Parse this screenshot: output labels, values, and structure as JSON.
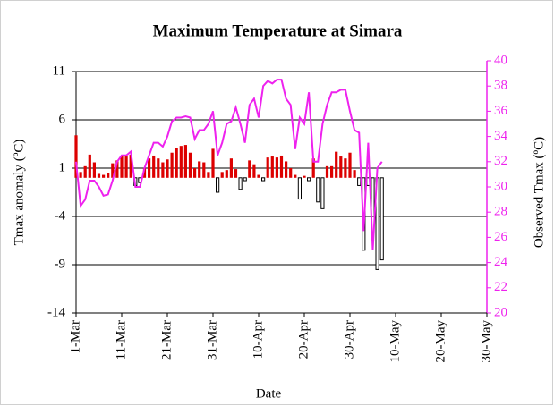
{
  "chart_data": {
    "type": "combo",
    "title": "Maximum Temperature at Simara",
    "xlabel": "Date",
    "ylabel": "Tmax anomaly (ºC)",
    "y2label": "Observed Tmax  (ºC)",
    "x": [
      0,
      1,
      2,
      3,
      4,
      5,
      6,
      7,
      8,
      9,
      10,
      11,
      12,
      13,
      14,
      15,
      16,
      17,
      18,
      19,
      20,
      21,
      22,
      23,
      24,
      25,
      26,
      27,
      28,
      29,
      30,
      31,
      32,
      33,
      34,
      35,
      36,
      37,
      38,
      39,
      40,
      41,
      42,
      43,
      44,
      45,
      46,
      47,
      48,
      49,
      50,
      51,
      52,
      53,
      54,
      55,
      56,
      57,
      58,
      59,
      60,
      61,
      62,
      63,
      64,
      65,
      66,
      67
    ],
    "xlim": [
      0,
      90
    ],
    "xticks": [
      {
        "value": 0,
        "label": "1-Mar"
      },
      {
        "value": 10,
        "label": "11-Mar"
      },
      {
        "value": 20,
        "label": "21-Mar"
      },
      {
        "value": 30,
        "label": "31-Mar"
      },
      {
        "value": 40,
        "label": "10-Apr"
      },
      {
        "value": 50,
        "label": "20-Apr"
      },
      {
        "value": 60,
        "label": "30-Apr"
      },
      {
        "value": 70,
        "label": "10-May"
      },
      {
        "value": 80,
        "label": "20-May"
      },
      {
        "value": 90,
        "label": "30-May"
      }
    ],
    "ylim": [
      -14,
      11
    ],
    "yticks": [
      -14,
      -9,
      -4,
      1,
      6,
      11
    ],
    "y2lim": [
      20,
      40
    ],
    "y2ticks": [
      20,
      22,
      24,
      26,
      28,
      30,
      32,
      34,
      36,
      38,
      40
    ],
    "grid": true,
    "series": [
      {
        "type": "bar",
        "color": "#dd0000",
        "negative_color": "#ffffff",
        "values": [
          4.4,
          0.6,
          1.2,
          2.4,
          1.6,
          0.4,
          0.3,
          0.5,
          1.5,
          1.8,
          2.2,
          2.2,
          2.4,
          -0.8,
          -0.5,
          1.0,
          2.0,
          2.3,
          2.0,
          1.6,
          1.9,
          2.6,
          3.1,
          3.3,
          3.4,
          2.6,
          1.0,
          1.7,
          1.6,
          0.6,
          3.0,
          -1.5,
          0.6,
          0.8,
          2.0,
          0.9,
          -1.2,
          -0.3,
          1.8,
          1.4,
          0.3,
          -0.3,
          2.1,
          2.2,
          2.1,
          2.3,
          1.7,
          1.0,
          0.3,
          -2.2,
          0.2,
          -0.3,
          2.0,
          -2.5,
          -3.2,
          1.2,
          1.2,
          2.7,
          2.2,
          2.0,
          2.6,
          0.8,
          -0.8,
          -7.5,
          -0.8,
          -4.0,
          -9.5,
          -8.5
        ]
      },
      {
        "type": "line",
        "axis": "y2",
        "color": "#ee22ee",
        "values": [
          32,
          28.5,
          29,
          30.5,
          30.5,
          30,
          29.3,
          29.4,
          30.5,
          32,
          32.5,
          32.5,
          32.8,
          30,
          30,
          31.5,
          32.5,
          33.5,
          33.5,
          33.2,
          34,
          35.2,
          35.5,
          35.5,
          35.6,
          35.5,
          33.8,
          34.5,
          34.5,
          35,
          36,
          32.5,
          33.5,
          35,
          35.2,
          36.3,
          35,
          33.5,
          36.5,
          37,
          35.5,
          38,
          38.4,
          38.2,
          38.5,
          38.5,
          37,
          36.5,
          33,
          35.5,
          35,
          37.5,
          32,
          32,
          35,
          36.5,
          37.5,
          37.5,
          37.7,
          37.7,
          36,
          34.5,
          34.3,
          26.5,
          33.5,
          25,
          31.5,
          32
        ]
      }
    ]
  }
}
